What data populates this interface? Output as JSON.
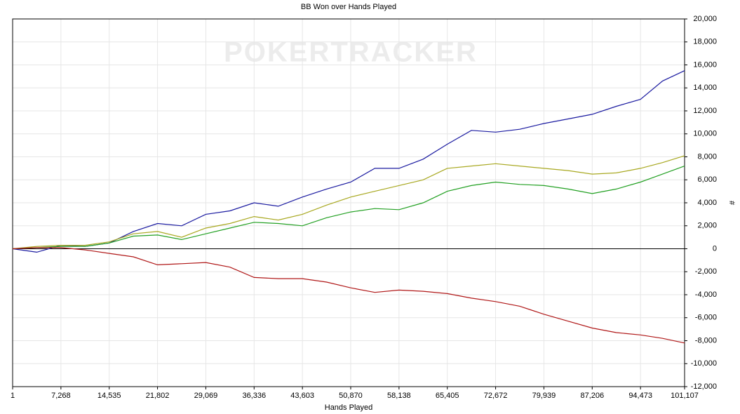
{
  "chart_data": {
    "type": "line",
    "title": "BB Won over Hands Played",
    "x_label": "Hands Played",
    "y_label": "#",
    "watermark": "POKERTRACKER",
    "x": [
      1,
      3634,
      7268,
      10901,
      14535,
      18168,
      21802,
      25435,
      29069,
      32702,
      36336,
      39969,
      43603,
      47236,
      50870,
      54504,
      58138,
      61771,
      65405,
      69038,
      72672,
      76305,
      79939,
      83572,
      87206,
      90839,
      94473,
      97790,
      101107
    ],
    "series": [
      {
        "color": "#1a1aa0",
        "values": [
          0,
          -300,
          300,
          200,
          500,
          1500,
          2200,
          2000,
          3000,
          3300,
          4000,
          3700,
          4500,
          5200,
          5800,
          7000,
          7000,
          7800,
          9100,
          10300,
          10150,
          10400,
          10900,
          11300,
          11700,
          12400,
          13000,
          14600,
          15500
        ]
      },
      {
        "color": "#a8a820",
        "values": [
          0,
          200,
          300,
          300,
          600,
          1300,
          1500,
          1000,
          1800,
          2200,
          2800,
          2500,
          3000,
          3800,
          4500,
          5000,
          5500,
          6000,
          7000,
          7200,
          7400,
          7200,
          7000,
          6800,
          6500,
          6600,
          7000,
          7500,
          8100
        ]
      },
      {
        "color": "#22a022",
        "values": [
          0,
          100,
          200,
          200,
          500,
          1100,
          1200,
          800,
          1300,
          1800,
          2300,
          2200,
          2000,
          2700,
          3200,
          3500,
          3400,
          4000,
          5000,
          5500,
          5800,
          5600,
          5500,
          5200,
          4800,
          5200,
          5800,
          6500,
          7200
        ]
      },
      {
        "color": "#b01818",
        "values": [
          0,
          100,
          100,
          -100,
          -400,
          -700,
          -1400,
          -1300,
          -1200,
          -1600,
          -2500,
          -2600,
          -2600,
          -2900,
          -3400,
          -3800,
          -3600,
          -3700,
          -3900,
          -4300,
          -4600,
          -5000,
          -5700,
          -6300,
          -6900,
          -7300,
          -7500,
          -7800,
          -8200
        ]
      }
    ],
    "xlim": [
      1,
      101107
    ],
    "xticks": [
      1,
      {
        "value": 7268,
        "label": "7,268"
      },
      {
        "value": 14535,
        "label": "14,535"
      },
      {
        "value": 21802,
        "label": "21,802"
      },
      {
        "value": 29069,
        "label": "29,069"
      },
      {
        "value": 36336,
        "label": "36,336"
      },
      {
        "value": 43603,
        "label": "43,603"
      },
      {
        "value": 50870,
        "label": "50,870"
      },
      {
        "value": 58138,
        "label": "58,138"
      },
      {
        "value": 65405,
        "label": "65,405"
      },
      {
        "value": 72672,
        "label": "72,672"
      },
      {
        "value": 79939,
        "label": "79,939"
      },
      {
        "value": 87206,
        "label": "87,206"
      },
      {
        "value": 94473,
        "label": "94,473"
      },
      {
        "value": 101107,
        "label": "101,107"
      }
    ],
    "ylim": [
      -12000,
      20000
    ],
    "yticks": [
      {
        "value": -12000,
        "label": "-12,000"
      },
      {
        "value": -10000,
        "label": "-10,000"
      },
      {
        "value": -8000,
        "label": "-8,000"
      },
      {
        "value": -6000,
        "label": "-6,000"
      },
      {
        "value": -4000,
        "label": "-4,000"
      },
      {
        "value": -2000,
        "label": "-2,000"
      },
      0,
      {
        "value": 2000,
        "label": "2,000"
      },
      {
        "value": 4000,
        "label": "4,000"
      },
      {
        "value": 6000,
        "label": "6,000"
      },
      {
        "value": 8000,
        "label": "8,000"
      },
      {
        "value": 10000,
        "label": "10,000"
      },
      {
        "value": 12000,
        "label": "12,000"
      },
      {
        "value": 14000,
        "label": "14,000"
      },
      {
        "value": 16000,
        "label": "16,000"
      },
      {
        "value": 18000,
        "label": "18,000"
      },
      {
        "value": 20000,
        "label": "20,000"
      }
    ],
    "grid": true
  }
}
